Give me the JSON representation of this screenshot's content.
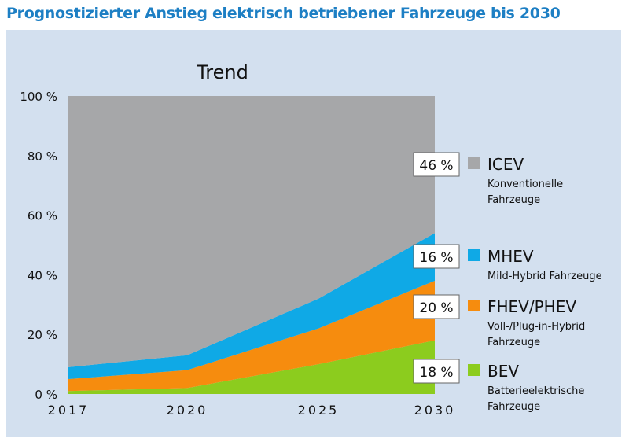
{
  "title": "Prognostizierter Anstieg elektrisch betriebener Fahrzeuge bis 2030",
  "chart_data": {
    "type": "area",
    "stacked": true,
    "title": "Trend",
    "categories": [
      "2017",
      "2020",
      "2025",
      "2030"
    ],
    "ylim": [
      0,
      100
    ],
    "yticks": [
      "0 %",
      "20 %",
      "40 %",
      "60 %",
      "80 %",
      "100 %"
    ],
    "grid": false,
    "legend_placement": "right",
    "series": [
      {
        "name": "BEV",
        "description": "Batterieelektrische Fahrzeuge",
        "values": [
          1,
          2,
          10,
          18
        ],
        "color": "#8ccc1e",
        "label": "18 %"
      },
      {
        "name": "FHEV/PHEV",
        "description": "Voll-/Plug-in-Hybrid Fahrzeuge",
        "values": [
          4,
          6,
          12,
          20
        ],
        "color": "#f68c0e",
        "label": "20 %"
      },
      {
        "name": "MHEV",
        "description": "Mild-Hybrid Fahrzeuge",
        "values": [
          4,
          5,
          10,
          16
        ],
        "color": "#0fa9e6",
        "label": "16 %"
      },
      {
        "name": "ICEV",
        "description": "Konventionelle Fahrzeuge",
        "values": [
          91,
          87,
          68,
          46
        ],
        "color": "#a6a7a9",
        "label": "46 %"
      }
    ]
  }
}
